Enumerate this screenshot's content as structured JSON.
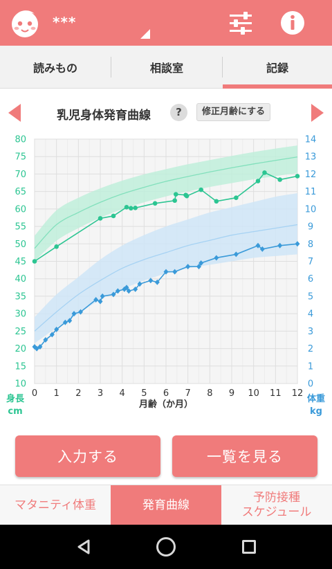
{
  "header": {
    "user_name": "***",
    "baby_icon": "baby-face-icon",
    "settings_icon": "sliders-icon",
    "info_icon": "info-icon"
  },
  "tabs": [
    {
      "label": "読みもの",
      "active": false
    },
    {
      "label": "相談室",
      "active": false
    },
    {
      "label": "記録",
      "active": true
    }
  ],
  "chart_header": {
    "title": "乳児身体発育曲線",
    "help_label": "?",
    "correct_age_label": "修正月齢にする"
  },
  "chart_data": {
    "type": "line",
    "xlabel": "月齢（か月）",
    "ylabel_left": "身長 cm",
    "ylabel_left_line1": "身長",
    "ylabel_left_line2": "cm",
    "ylabel_right": "体重 kg",
    "ylabel_right_line1": "体重",
    "ylabel_right_line2": "kg",
    "x_ticks": [
      "0",
      "1",
      "2",
      "3",
      "4",
      "5",
      "6",
      "7",
      "8",
      "9",
      "10",
      "11",
      "12"
    ],
    "y_left_ticks": [
      "10",
      "15",
      "20",
      "25",
      "30",
      "35",
      "40",
      "45",
      "50",
      "55",
      "60",
      "65",
      "70",
      "75",
      "80"
    ],
    "y_right_ticks": [
      "0",
      "1",
      "2",
      "3",
      "4",
      "5",
      "6",
      "7",
      "8",
      "9",
      "10",
      "11",
      "12",
      "13",
      "14"
    ],
    "xlim": [
      0,
      12
    ],
    "ylim_left": [
      10,
      80
    ],
    "ylim_right": [
      0,
      14
    ],
    "grid": true,
    "colors": {
      "height": "#2cc592",
      "height_band": "#bfeedb",
      "height_median": "#82e0bc",
      "weight": "#3a9ad9",
      "weight_band": "#cfe5f7",
      "weight_median": "#a6d2f3",
      "left_axis": "#2cc592",
      "right_axis": "#3a9ad9"
    },
    "height_band": {
      "x": [
        0,
        1,
        2,
        3,
        4,
        5,
        6,
        7,
        8,
        9,
        10,
        11,
        12
      ],
      "lower": [
        45.0,
        50.9,
        54.5,
        57.5,
        59.9,
        61.9,
        63.6,
        65.0,
        66.3,
        67.4,
        68.5,
        69.4,
        70.3
      ],
      "median": [
        48.7,
        55.5,
        59.0,
        61.9,
        64.3,
        66.2,
        67.9,
        69.3,
        70.6,
        71.8,
        72.9,
        73.9,
        74.9
      ],
      "upper": [
        52.3,
        59.6,
        63.2,
        65.9,
        68.1,
        69.9,
        71.4,
        72.8,
        74.0,
        75.2,
        76.3,
        77.3,
        78.2
      ]
    },
    "weight_band": {
      "x": [
        0,
        1,
        2,
        3,
        4,
        5,
        6,
        7,
        8,
        9,
        10,
        11,
        12
      ],
      "lower": [
        2.3,
        3.2,
        4.0,
        4.8,
        5.4,
        5.9,
        6.3,
        6.6,
        6.8,
        7.0,
        7.2,
        7.3,
        7.4
      ],
      "median": [
        3.0,
        4.1,
        5.1,
        5.9,
        6.6,
        7.1,
        7.5,
        7.9,
        8.2,
        8.5,
        8.7,
        8.9,
        9.1
      ],
      "upper": [
        3.8,
        5.1,
        6.1,
        7.1,
        7.9,
        8.5,
        9.0,
        9.4,
        9.8,
        10.1,
        10.4,
        10.7,
        10.9
      ]
    },
    "series": [
      {
        "name": "身長",
        "axis": "left",
        "x": [
          0,
          1,
          3,
          3.6,
          4.2,
          4.4,
          4.6,
          5.5,
          6.4,
          6.45,
          6.9,
          6.95,
          7.6,
          8.3,
          9.2,
          10.2,
          10.5,
          11.2,
          12
        ],
        "values": [
          45.0,
          49.2,
          57.3,
          58.0,
          60.5,
          60.2,
          60.3,
          61.6,
          62.4,
          64.2,
          64.0,
          63.7,
          65.5,
          62.2,
          63.2,
          68.0,
          70.4,
          68.4,
          69.4
        ]
      },
      {
        "name": "体重",
        "axis": "right",
        "x": [
          0,
          0.1,
          0.25,
          0.5,
          0.8,
          1.0,
          1.4,
          1.6,
          1.8,
          2.1,
          2.8,
          3.0,
          3.1,
          3.6,
          3.8,
          4.1,
          4.2,
          4.3,
          4.6,
          4.8,
          5.3,
          5.6,
          6.0,
          6.4,
          7.0,
          7.5,
          7.6,
          8.3,
          9.2,
          10.2,
          10.4,
          11.2,
          12
        ],
        "values": [
          2.1,
          2.0,
          2.1,
          2.5,
          2.8,
          3.1,
          3.5,
          3.6,
          4.0,
          4.1,
          4.8,
          4.7,
          5.0,
          5.1,
          5.3,
          5.4,
          5.5,
          5.3,
          5.4,
          5.7,
          5.9,
          5.8,
          6.4,
          6.4,
          6.7,
          6.7,
          6.9,
          7.2,
          7.4,
          7.9,
          7.7,
          7.9,
          8.0
        ]
      }
    ]
  },
  "actions": {
    "input_label": "入力する",
    "list_label": "一覧を見る"
  },
  "bottom_nav": [
    {
      "line1": "マタニティ体重",
      "line2": "",
      "active": false
    },
    {
      "line1": "発育曲線",
      "line2": "",
      "active": true
    },
    {
      "line1": "予防接種",
      "line2": "スケジュール",
      "active": false
    }
  ]
}
